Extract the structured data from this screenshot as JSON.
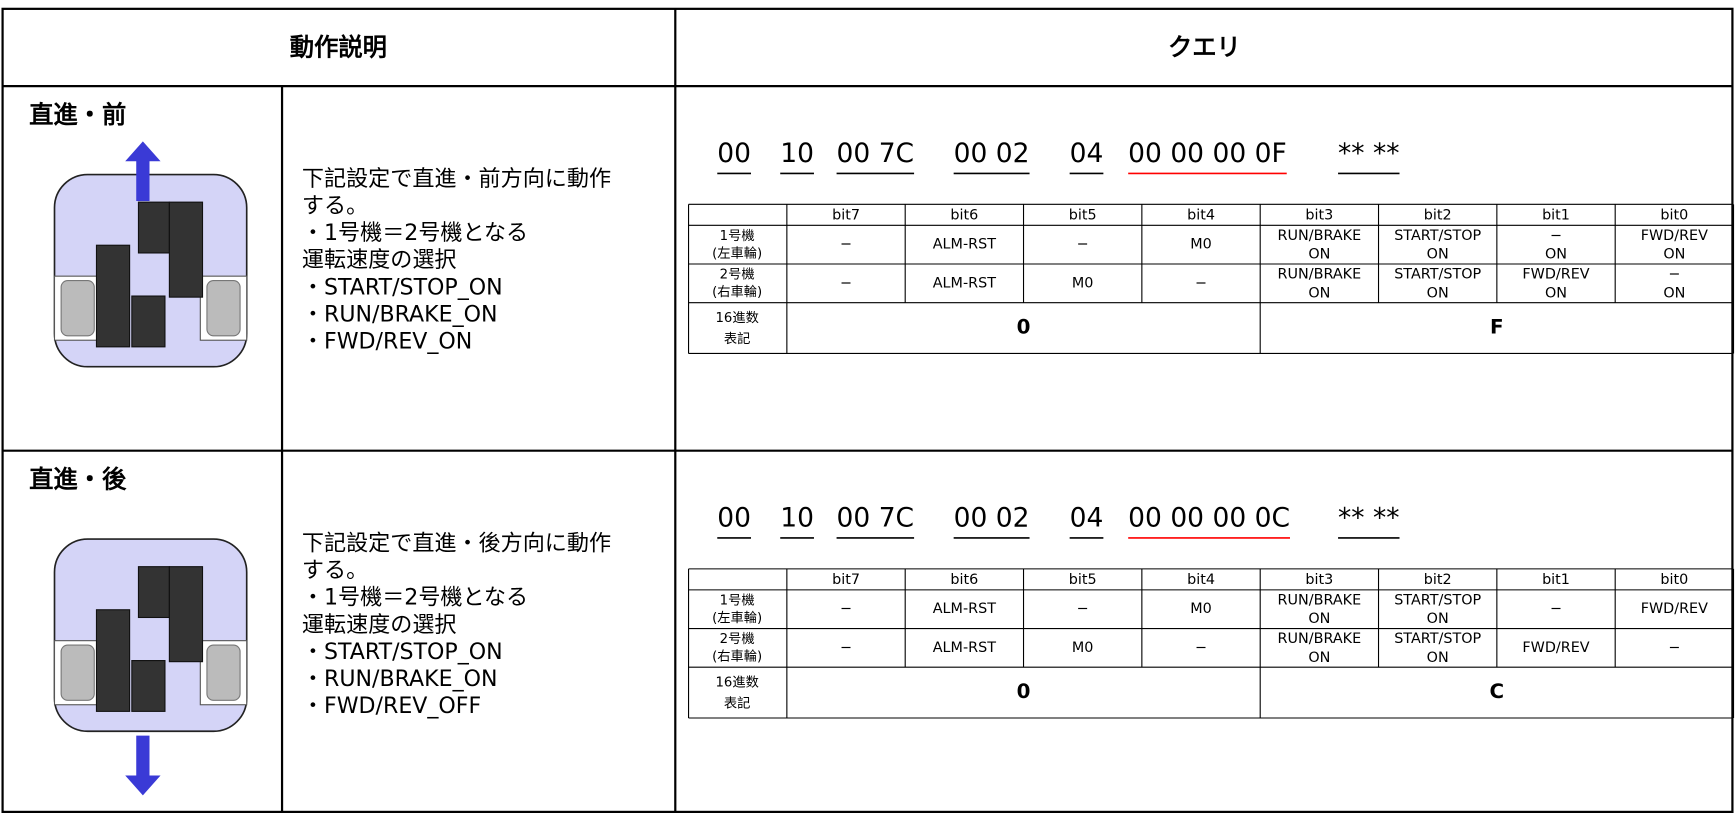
{
  "header": {
    "left": "動作説明",
    "right": "クエリ"
  },
  "rows": [
    {
      "title": "直進・前",
      "description": [
        "下記設定で直進・前方向に動作",
        "する。",
        "・1号機＝2号機となる",
        " 運転速度の選択",
        "・START/STOP_ON",
        "・RUN/BRAKE_ON",
        "・FWD/REV_ON"
      ],
      "query": [
        "00",
        "10",
        "00 7C",
        "00 02",
        "04",
        "00 00 00 0F",
        "** **"
      ],
      "bit_table": {
        "columns": [
          "bit7",
          "bit6",
          "bit5",
          "bit4",
          "bit3",
          "bit2",
          "bit1",
          "bit0"
        ],
        "rows": [
          {
            "label": [
              "1号機",
              "(左車輪)"
            ],
            "cells": [
              [
                "−"
              ],
              [
                "ALM-RST"
              ],
              [
                "−"
              ],
              [
                "M0"
              ],
              [
                "RUN/BRAKE",
                "ON"
              ],
              [
                "START/STOP",
                "ON"
              ],
              [
                "−",
                "ON"
              ],
              [
                "FWD/REV",
                "ON"
              ]
            ]
          },
          {
            "label": [
              "2号機",
              "(右車輪)"
            ],
            "cells": [
              [
                "−"
              ],
              [
                "ALM-RST"
              ],
              [
                "M0"
              ],
              [
                "−"
              ],
              [
                "RUN/BRAKE",
                "ON"
              ],
              [
                "START/STOP",
                "ON"
              ],
              [
                "FWD/REV",
                "ON"
              ],
              [
                "−",
                "ON"
              ]
            ]
          }
        ],
        "hex": {
          "label": [
            "16進数",
            "表記"
          ],
          "values": [
            "0",
            "F"
          ]
        }
      }
    },
    {
      "title": "直進・後",
      "description": [
        "下記設定で直進・後方向に動作",
        "する。",
        "・1号機＝2号機となる",
        " 運転速度の選択",
        "・START/STOP_ON",
        "・RUN/BRAKE_ON",
        "・FWD/REV_OFF"
      ],
      "query": [
        "00",
        "10",
        "00 7C",
        "00 02",
        "04",
        "00 00 00 0C",
        "** **"
      ],
      "bit_table": {
        "columns": [
          "bit7",
          "bit6",
          "bit5",
          "bit4",
          "bit3",
          "bit2",
          "bit1",
          "bit0"
        ],
        "rows": [
          {
            "label": [
              "1号機",
              "(左車輪)"
            ],
            "cells": [
              [
                "−"
              ],
              [
                "ALM-RST"
              ],
              [
                "−"
              ],
              [
                "M0"
              ],
              [
                "RUN/BRAKE",
                "ON"
              ],
              [
                "START/STOP",
                "ON"
              ],
              [
                "−"
              ],
              [
                "FWD/REV"
              ]
            ]
          },
          {
            "label": [
              "2号機",
              "(右車輪)"
            ],
            "cells": [
              [
                "−"
              ],
              [
                "ALM-RST"
              ],
              [
                "M0"
              ],
              [
                "−"
              ],
              [
                "RUN/BRAKE",
                "ON"
              ],
              [
                "START/STOP",
                "ON"
              ],
              [
                "FWD/REV"
              ],
              [
                "−"
              ]
            ]
          }
        ],
        "hex": {
          "label": [
            "16進数",
            "表記"
          ],
          "values": [
            "0",
            "C"
          ]
        }
      }
    }
  ]
}
